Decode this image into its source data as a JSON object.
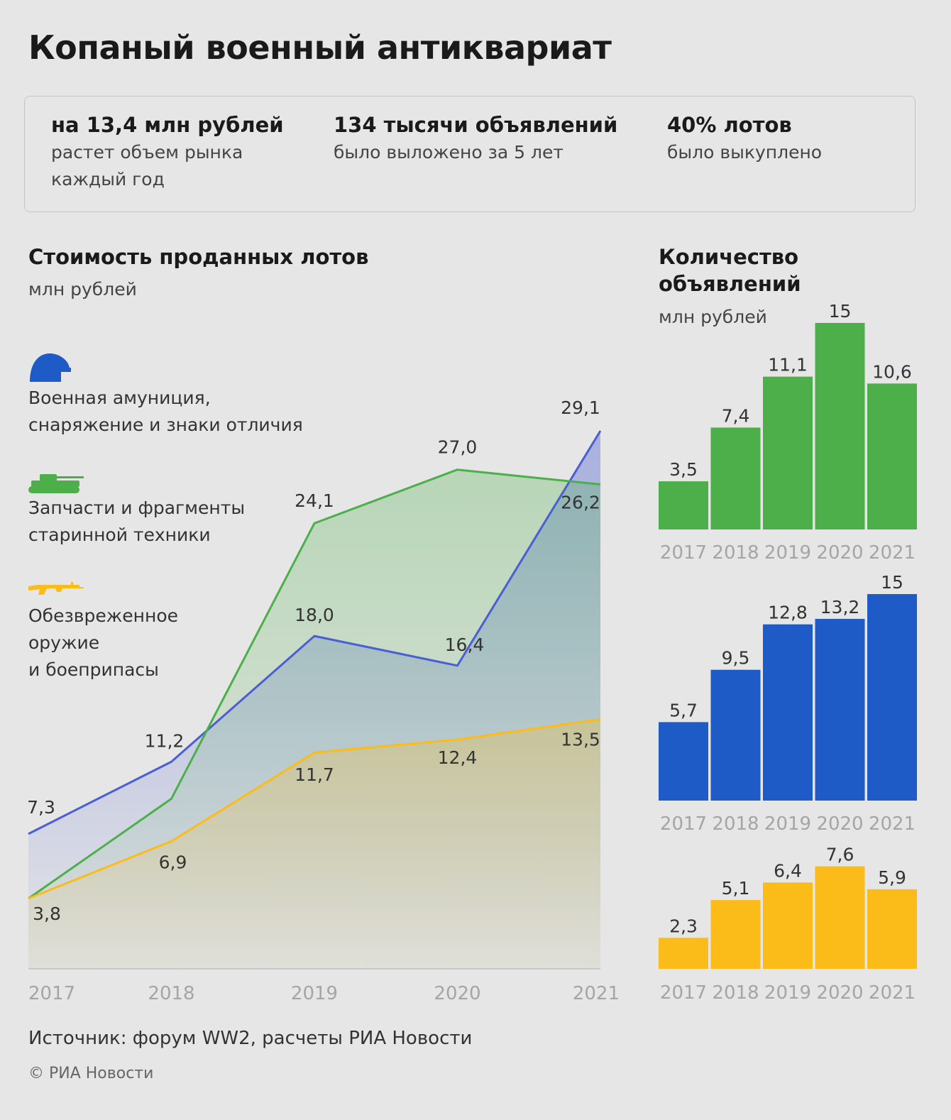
{
  "title": "Копаный военный антиквариат",
  "stats": [
    {
      "head": "на 13,4 млн рублей",
      "sub": "растет объем рынка каждый год"
    },
    {
      "head": "134 тысячи объявлений",
      "sub": "было выложено за 5 лет"
    },
    {
      "head": "40% лотов",
      "sub": "было выкуплено"
    }
  ],
  "line_section": {
    "title": "Стоимость проданных лотов",
    "unit": "млн рублей"
  },
  "bar_section": {
    "title_line1": "Количество",
    "title_line2": "объявлений",
    "unit": "млн рублей"
  },
  "legend": [
    {
      "icon": "helmet-icon",
      "color": "#1f5bc6",
      "line1": "Военная амуниция,",
      "line2": "снаряжение и знаки отличия"
    },
    {
      "icon": "tank-icon",
      "color": "#4caf4a",
      "line1": "Запчасти и фрагменты",
      "line2": "старинной техники"
    },
    {
      "icon": "rifle-icon",
      "color": "#fbbc1a",
      "line1": "Обезвреженное",
      "line2": "оружие",
      "line3": "и боеприпасы"
    }
  ],
  "chart_data": [
    {
      "type": "area",
      "title": "Стоимость проданных лотов",
      "ylabel": "млн рублей",
      "x": [
        "2017",
        "2018",
        "2019",
        "2020",
        "2021"
      ],
      "ylim": [
        0,
        30
      ],
      "grid": false,
      "series": [
        {
          "name": "Военная амуниция, снаряжение и знаки отличия",
          "color": "#4a5fd1",
          "values": [
            7.3,
            11.2,
            18.0,
            16.4,
            29.1
          ],
          "labels": [
            "7,3",
            "11,2",
            "18,0",
            "16,4",
            "29,1"
          ]
        },
        {
          "name": "Запчасти и фрагменты старинной техники",
          "color": "#4caf4a",
          "values": [
            3.8,
            9.2,
            24.1,
            27.0,
            26.2
          ],
          "labels": [
            "",
            "",
            "24,1",
            "27,0",
            "26,2"
          ]
        },
        {
          "name": "Обезвреженное оружие и боеприпасы",
          "color": "#fbbc1a",
          "values": [
            3.8,
            6.9,
            11.7,
            12.4,
            13.5
          ],
          "labels": [
            "3,8",
            "6,9",
            "11,7",
            "12,4",
            "13,5"
          ]
        }
      ]
    },
    {
      "type": "bar",
      "categories": [
        "2017",
        "2018",
        "2019",
        "2020",
        "2021"
      ],
      "color": "#4caf4a",
      "values": [
        3.5,
        7.4,
        11.1,
        15,
        10.6
      ],
      "labels": [
        "3,5",
        "7,4",
        "11,1",
        "15",
        "10,6"
      ]
    },
    {
      "type": "bar",
      "categories": [
        "2017",
        "2018",
        "2019",
        "2020",
        "2021"
      ],
      "color": "#1f5bc6",
      "values": [
        5.7,
        9.5,
        12.8,
        13.2,
        15
      ],
      "labels": [
        "5,7",
        "9,5",
        "12,8",
        "13,2",
        "15"
      ]
    },
    {
      "type": "bar",
      "categories": [
        "2017",
        "2018",
        "2019",
        "2020",
        "2021"
      ],
      "color": "#fbbc1a",
      "values": [
        2.3,
        5.1,
        6.4,
        7.6,
        5.9
      ],
      "labels": [
        "2,3",
        "5,1",
        "6,4",
        "7,6",
        "5,9"
      ]
    }
  ],
  "source": "Источник: форум WW2, расчеты РИА Новости",
  "copyright": "© РИА Новости"
}
